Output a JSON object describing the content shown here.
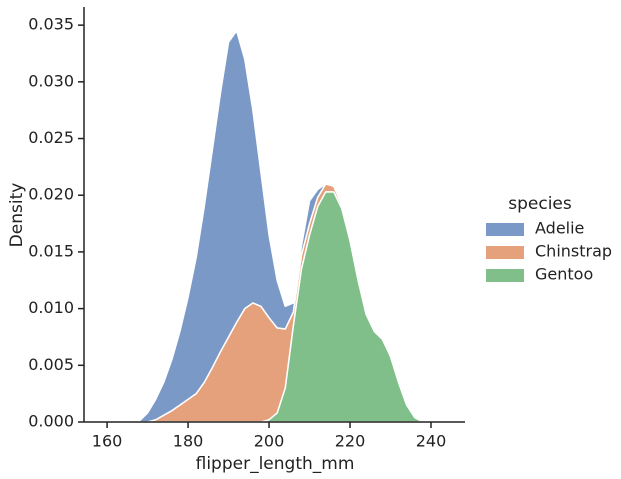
{
  "chart_data": {
    "type": "area",
    "stacked": true,
    "xlabel": "flipper_length_mm",
    "ylabel": "Density",
    "legend_title": "species",
    "legend": "right",
    "x": [
      166,
      168,
      170,
      172,
      174,
      176,
      178,
      180,
      182,
      184,
      186,
      188,
      190,
      192,
      194,
      196,
      198,
      200,
      202,
      204,
      206,
      208,
      210,
      212,
      214,
      216,
      218,
      220,
      222,
      224,
      226,
      228,
      230,
      232,
      234,
      236,
      238
    ],
    "series": [
      {
        "name": "Adelie",
        "color": "#7b99c7",
        "values": [
          0,
          0.0001,
          0.0008,
          0.0018,
          0.0029,
          0.0045,
          0.0065,
          0.009,
          0.012,
          0.0155,
          0.0192,
          0.0228,
          0.026,
          0.0257,
          0.022,
          0.017,
          0.0118,
          0.0073,
          0.0042,
          0.002,
          0.0008,
          0.0008,
          0.002,
          0.0007,
          0,
          0,
          0,
          0,
          0,
          0,
          0,
          0,
          0,
          0,
          0,
          0,
          0
        ]
      },
      {
        "name": "Chinstrap",
        "color": "#e4a17b",
        "values": [
          0,
          0,
          0,
          0.0002,
          0.0006,
          0.001,
          0.0015,
          0.002,
          0.0025,
          0.0035,
          0.0048,
          0.0062,
          0.0075,
          0.0088,
          0.01,
          0.0105,
          0.0102,
          0.009,
          0.0075,
          0.0052,
          0.0012,
          0.0012,
          0.001,
          0.0008,
          0.0007,
          0.0005,
          0.0003,
          0.0002,
          0.0001,
          0,
          0,
          0,
          0,
          0,
          0,
          0,
          0
        ]
      },
      {
        "name": "Gentoo",
        "color": "#80bf8a",
        "values": [
          0,
          0,
          0,
          0,
          0,
          0,
          0,
          0,
          0,
          0,
          0,
          0,
          0,
          0,
          0,
          0,
          0,
          0.0002,
          0.0008,
          0.003,
          0.0085,
          0.0135,
          0.0165,
          0.019,
          0.0203,
          0.0203,
          0.0188,
          0.016,
          0.0125,
          0.0095,
          0.008,
          0.0073,
          0.0058,
          0.0035,
          0.0015,
          0.0004,
          0
        ]
      }
    ],
    "stack_order": [
      "Gentoo",
      "Chinstrap",
      "Adelie"
    ],
    "xlim": [
      154.3,
      248.4
    ],
    "xticks": [
      160,
      180,
      200,
      220,
      240
    ],
    "ylim": [
      0,
      0.0366
    ],
    "yticks": [
      {
        "value": 0,
        "label": "0.000"
      },
      {
        "value": 0.005,
        "label": "0.005"
      },
      {
        "value": 0.01,
        "label": "0.010"
      },
      {
        "value": 0.015,
        "label": "0.015"
      },
      {
        "value": 0.02,
        "label": "0.020"
      },
      {
        "value": 0.025,
        "label": "0.025"
      },
      {
        "value": 0.03,
        "label": "0.030"
      },
      {
        "value": 0.035,
        "label": "0.035"
      }
    ]
  }
}
